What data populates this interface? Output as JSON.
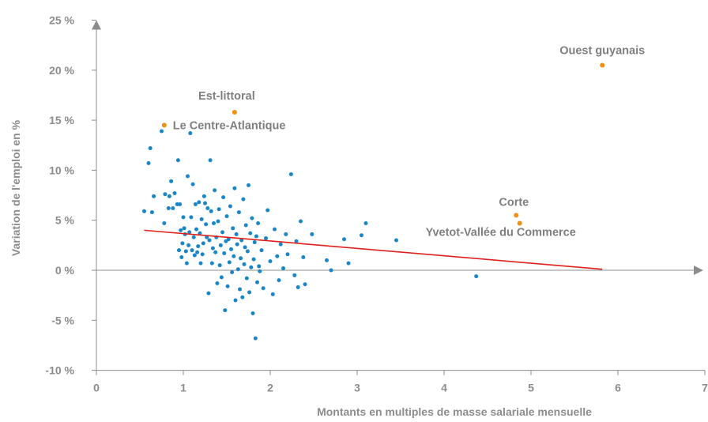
{
  "chart_data": {
    "type": "scatter",
    "title": "",
    "xlabel": "Montants en multiples de masse salariale mensuelle",
    "ylabel": "Variation de l'emploi en %",
    "xlim": [
      0,
      7
    ],
    "ylim": [
      -10,
      25
    ],
    "x_ticks": [
      "0",
      "1",
      "2",
      "3",
      "4",
      "5",
      "6",
      "7"
    ],
    "y_ticks": [
      "-10 %",
      "-5 %",
      "0 %",
      "5 %",
      "10 %",
      "15 %",
      "20 %",
      "25 %"
    ],
    "grid": false,
    "legend": "none",
    "colors": {
      "points": "#1a86c7",
      "highlight": "#f0900d",
      "trend": "#e0201c",
      "axis": "#8c8c8c"
    },
    "series": [
      {
        "points": [
          [
            0.55,
            5.9
          ],
          [
            0.6,
            10.7
          ],
          [
            0.62,
            12.2
          ],
          [
            0.64,
            5.8
          ],
          [
            0.66,
            7.4
          ],
          [
            0.75,
            13.9
          ],
          [
            0.78,
            4.7
          ],
          [
            0.79,
            7.6
          ],
          [
            0.83,
            6.2
          ],
          [
            0.84,
            7.4
          ],
          [
            0.86,
            8.9
          ],
          [
            0.88,
            6.2
          ],
          [
            0.9,
            7.7
          ],
          [
            0.93,
            6.6
          ],
          [
            0.94,
            11.0
          ],
          [
            0.95,
            2.0
          ],
          [
            0.96,
            6.6
          ],
          [
            0.97,
            4.0
          ],
          [
            0.98,
            1.3
          ],
          [
            0.99,
            2.7
          ],
          [
            1.0,
            5.3
          ],
          [
            1.01,
            4.2
          ],
          [
            1.02,
            3.6
          ],
          [
            1.03,
            1.9
          ],
          [
            1.04,
            0.7
          ],
          [
            1.05,
            9.4
          ],
          [
            1.06,
            2.5
          ],
          [
            1.07,
            3.8
          ],
          [
            1.08,
            13.7
          ],
          [
            1.09,
            5.3
          ],
          [
            1.1,
            2.0
          ],
          [
            1.11,
            8.6
          ],
          [
            1.12,
            3.3
          ],
          [
            1.13,
            1.5
          ],
          [
            1.14,
            6.6
          ],
          [
            1.15,
            4.1
          ],
          [
            1.16,
            1.8
          ],
          [
            1.17,
            2.4
          ],
          [
            1.18,
            6.8
          ],
          [
            1.19,
            3.7
          ],
          [
            1.2,
            0.7
          ],
          [
            1.21,
            5.1
          ],
          [
            1.22,
            1.6
          ],
          [
            1.23,
            2.7
          ],
          [
            1.24,
            7.4
          ],
          [
            1.25,
            6.7
          ],
          [
            1.26,
            4.6
          ],
          [
            1.27,
            3.3
          ],
          [
            1.28,
            6.2
          ],
          [
            1.29,
            -2.3
          ],
          [
            1.3,
            3.0
          ],
          [
            1.31,
            11.0
          ],
          [
            1.32,
            5.9
          ],
          [
            1.33,
            0.7
          ],
          [
            1.34,
            2.2
          ],
          [
            1.35,
            4.7
          ],
          [
            1.36,
            8.0
          ],
          [
            1.37,
            1.8
          ],
          [
            1.38,
            3.3
          ],
          [
            1.39,
            -1.3
          ],
          [
            1.4,
            4.9
          ],
          [
            1.41,
            6.1
          ],
          [
            1.42,
            0.5
          ],
          [
            1.43,
            2.5
          ],
          [
            1.44,
            -0.7
          ],
          [
            1.45,
            3.8
          ],
          [
            1.46,
            7.3
          ],
          [
            1.47,
            1.7
          ],
          [
            1.48,
            -4.0
          ],
          [
            1.49,
            2.9
          ],
          [
            1.5,
            5.4
          ],
          [
            1.51,
            -1.6
          ],
          [
            1.52,
            3.1
          ],
          [
            1.53,
            0.8
          ],
          [
            1.54,
            6.4
          ],
          [
            1.55,
            2.1
          ],
          [
            1.56,
            -0.2
          ],
          [
            1.57,
            4.2
          ],
          [
            1.58,
            1.4
          ],
          [
            1.59,
            8.2
          ],
          [
            1.6,
            -3.0
          ],
          [
            1.61,
            3.6
          ],
          [
            1.62,
            2.6
          ],
          [
            1.63,
            0.1
          ],
          [
            1.64,
            5.8
          ],
          [
            1.65,
            -1.9
          ],
          [
            1.66,
            1.2
          ],
          [
            1.67,
            3.0
          ],
          [
            1.68,
            -2.7
          ],
          [
            1.69,
            7.1
          ],
          [
            1.7,
            0.6
          ],
          [
            1.71,
            2.3
          ],
          [
            1.72,
            4.5
          ],
          [
            1.73,
            -0.8
          ],
          [
            1.74,
            1.9
          ],
          [
            1.75,
            8.5
          ],
          [
            1.76,
            -2.2
          ],
          [
            1.77,
            3.7
          ],
          [
            1.78,
            0.3
          ],
          [
            1.79,
            5.2
          ],
          [
            1.8,
            -4.3
          ],
          [
            1.81,
            1.1
          ],
          [
            1.82,
            2.8
          ],
          [
            1.83,
            -6.8
          ],
          [
            1.84,
            3.4
          ],
          [
            1.85,
            -1.2
          ],
          [
            1.86,
            4.7
          ],
          [
            1.87,
            0.4
          ],
          [
            1.88,
            -0.1
          ],
          [
            1.9,
            2.0
          ],
          [
            1.92,
            -1.8
          ],
          [
            1.95,
            3.2
          ],
          [
            1.97,
            6.0
          ],
          [
            2.0,
            0.9
          ],
          [
            2.03,
            -2.4
          ],
          [
            2.05,
            4.1
          ],
          [
            2.08,
            1.4
          ],
          [
            2.1,
            -1.0
          ],
          [
            2.12,
            2.6
          ],
          [
            2.15,
            0.2
          ],
          [
            2.18,
            3.6
          ],
          [
            2.2,
            1.6
          ],
          [
            2.24,
            9.6
          ],
          [
            2.28,
            -0.5
          ],
          [
            2.3,
            2.9
          ],
          [
            2.32,
            -1.7
          ],
          [
            2.35,
            4.9
          ],
          [
            2.38,
            1.3
          ],
          [
            2.4,
            -1.4
          ],
          [
            2.48,
            3.6
          ],
          [
            2.65,
            1.0
          ],
          [
            2.7,
            0.0
          ],
          [
            2.85,
            3.1
          ],
          [
            2.9,
            0.7
          ],
          [
            3.05,
            3.5
          ],
          [
            3.1,
            4.7
          ],
          [
            3.45,
            3.0
          ],
          [
            4.37,
            -0.6
          ]
        ]
      },
      {
        "points": [
          {
            "label": "Ouest guyanais",
            "x": 5.82,
            "y": 20.5
          },
          {
            "label": "Est-littoral",
            "x": 1.59,
            "y": 15.8
          },
          {
            "label": "Le Centre-Atlantique",
            "x": 0.78,
            "y": 14.5
          },
          {
            "label": "Corte",
            "x": 4.83,
            "y": 5.5
          },
          {
            "label": "Yvetot-Vallée du Commerce",
            "x": 4.87,
            "y": 4.7
          }
        ]
      }
    ],
    "trendline": {
      "x": [
        0.55,
        5.82
      ],
      "y": [
        4.0,
        0.1
      ]
    }
  }
}
